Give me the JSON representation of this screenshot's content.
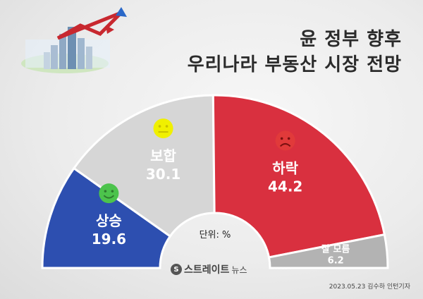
{
  "title": {
    "line1": "윤 정부 향후",
    "line2": "우리나라 부동산 시장 전망"
  },
  "unit_label": "단위: %",
  "footer": "2023.05.23 김수하 인턴기자",
  "brand": {
    "main": "스트레이트",
    "sub": "뉴스",
    "mark": "S"
  },
  "colors": {
    "up": "#2d4fb0",
    "same": "#d6d6d6",
    "down": "#d9303f",
    "unknown": "#b3b3b3",
    "face_green": "#4cc34c",
    "face_yellow": "#f0f000",
    "face_red": "#e13a3a"
  },
  "chart_data": {
    "type": "pie",
    "title": "윤 정부 향후 우리나라 부동산 시장 전망",
    "unit": "%",
    "categories": [
      "상승",
      "보합",
      "하락",
      "잘 모름"
    ],
    "values": [
      19.6,
      30.1,
      44.2,
      6.2
    ],
    "value_labels": [
      "19.6",
      "30.1",
      "44.2",
      "6.2"
    ],
    "style": "semicircle-donut",
    "slice_icons": [
      "smile-face-icon",
      "neutral-face-icon",
      "sad-face-icon",
      ""
    ]
  }
}
